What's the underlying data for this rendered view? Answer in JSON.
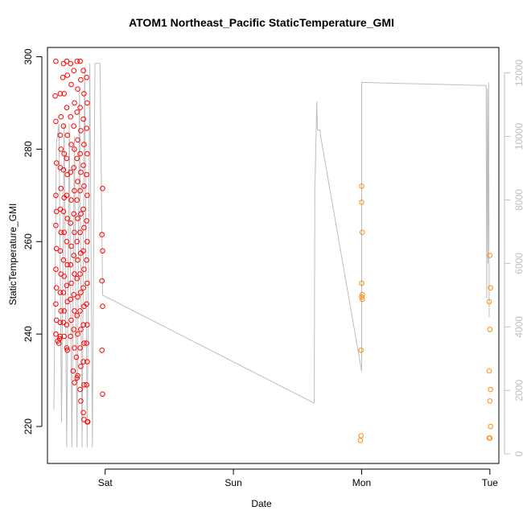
{
  "chart_data": {
    "type": "scatter",
    "title": "ATOM1 Northeast_Pacific StaticTemperature_GMI",
    "xlabel": "Date",
    "ylabel": "StaticTemperature_GMI",
    "x_ticks": [
      {
        "label": "Sat",
        "day": 0
      },
      {
        "label": "Sun",
        "day": 1
      },
      {
        "label": "Mon",
        "day": 2
      },
      {
        "label": "Tue",
        "day": 3
      }
    ],
    "xlim": [
      -0.45,
      3.07
    ],
    "ylim": [
      212,
      302
    ],
    "y_ticks": [
      220,
      240,
      260,
      280,
      300
    ],
    "y2lim": [
      -300,
      12800
    ],
    "y2_ticks": [
      0,
      2000,
      4000,
      6000,
      8000,
      10000,
      12000
    ],
    "grid": false,
    "colors": {
      "series1": "#ff0000",
      "series2": "#ff8c00",
      "altitude": "#bebebe",
      "y2_axis": "#bebebe"
    },
    "series": [
      {
        "color": "#ff0000",
        "points": [
          [
            -0.385,
            299
          ],
          [
            -0.39,
            291.5
          ],
          [
            -0.385,
            286
          ],
          [
            -0.38,
            277
          ],
          [
            -0.385,
            270
          ],
          [
            -0.38,
            266.5
          ],
          [
            -0.385,
            263.5
          ],
          [
            -0.38,
            258.5
          ],
          [
            -0.385,
            254
          ],
          [
            -0.38,
            250
          ],
          [
            -0.385,
            246.5
          ],
          [
            -0.38,
            243
          ],
          [
            -0.385,
            240
          ],
          [
            -0.37,
            238.5
          ],
          [
            -0.35,
            292
          ],
          [
            -0.345,
            287
          ],
          [
            -0.35,
            283
          ],
          [
            -0.345,
            280
          ],
          [
            -0.35,
            276
          ],
          [
            -0.345,
            271.5
          ],
          [
            -0.35,
            267
          ],
          [
            -0.345,
            262
          ],
          [
            -0.35,
            258
          ],
          [
            -0.345,
            253
          ],
          [
            -0.35,
            249
          ],
          [
            -0.345,
            245
          ],
          [
            -0.35,
            242.5
          ],
          [
            -0.35,
            239.5
          ],
          [
            -0.355,
            239
          ],
          [
            -0.36,
            238
          ],
          [
            -0.33,
            295.5
          ],
          [
            -0.325,
            298.5
          ],
          [
            -0.32,
            292
          ],
          [
            -0.325,
            285
          ],
          [
            -0.32,
            279
          ],
          [
            -0.325,
            275.5
          ],
          [
            -0.32,
            269.5
          ],
          [
            -0.325,
            266.5
          ],
          [
            -0.32,
            262
          ],
          [
            -0.325,
            256
          ],
          [
            -0.32,
            252.5
          ],
          [
            -0.325,
            249
          ],
          [
            -0.32,
            245
          ],
          [
            -0.325,
            242.5
          ],
          [
            -0.32,
            239.5
          ],
          [
            -0.3,
            299
          ],
          [
            -0.295,
            296
          ],
          [
            -0.3,
            289
          ],
          [
            -0.295,
            283
          ],
          [
            -0.3,
            278
          ],
          [
            -0.295,
            274.5
          ],
          [
            -0.3,
            270
          ],
          [
            -0.295,
            265
          ],
          [
            -0.3,
            260
          ],
          [
            -0.295,
            255
          ],
          [
            -0.3,
            250.5
          ],
          [
            -0.295,
            247
          ],
          [
            -0.3,
            242
          ],
          [
            -0.3,
            237
          ],
          [
            -0.295,
            236.5
          ],
          [
            -0.27,
            298.5
          ],
          [
            -0.265,
            294
          ],
          [
            -0.27,
            287
          ],
          [
            -0.265,
            281
          ],
          [
            -0.27,
            275
          ],
          [
            -0.265,
            269
          ],
          [
            -0.27,
            264
          ],
          [
            -0.265,
            259
          ],
          [
            -0.27,
            255
          ],
          [
            -0.265,
            251
          ],
          [
            -0.27,
            247.5
          ],
          [
            -0.265,
            243
          ],
          [
            -0.27,
            239.5
          ],
          [
            -0.245,
            297
          ],
          [
            -0.24,
            290
          ],
          [
            -0.245,
            285
          ],
          [
            -0.24,
            280
          ],
          [
            -0.245,
            276
          ],
          [
            -0.24,
            271
          ],
          [
            -0.245,
            266
          ],
          [
            -0.24,
            262
          ],
          [
            -0.245,
            257
          ],
          [
            -0.24,
            253
          ],
          [
            -0.245,
            248.5
          ],
          [
            -0.24,
            245
          ],
          [
            -0.245,
            241
          ],
          [
            -0.24,
            237
          ],
          [
            -0.25,
            232
          ],
          [
            -0.24,
            229.5
          ],
          [
            -0.22,
            299
          ],
          [
            -0.215,
            293
          ],
          [
            -0.22,
            288
          ],
          [
            -0.215,
            282
          ],
          [
            -0.22,
            278
          ],
          [
            -0.215,
            273
          ],
          [
            -0.22,
            269
          ],
          [
            -0.215,
            265
          ],
          [
            -0.22,
            260
          ],
          [
            -0.215,
            256
          ],
          [
            -0.22,
            252
          ],
          [
            -0.215,
            248
          ],
          [
            -0.22,
            244
          ],
          [
            -0.215,
            240
          ],
          [
            -0.225,
            235
          ],
          [
            -0.215,
            231
          ],
          [
            -0.22,
            230.5
          ],
          [
            -0.195,
            299
          ],
          [
            -0.19,
            295
          ],
          [
            -0.195,
            289
          ],
          [
            -0.19,
            284
          ],
          [
            -0.195,
            279
          ],
          [
            -0.19,
            275
          ],
          [
            -0.195,
            271
          ],
          [
            -0.19,
            266
          ],
          [
            -0.195,
            262
          ],
          [
            -0.19,
            257.5
          ],
          [
            -0.195,
            253
          ],
          [
            -0.19,
            249
          ],
          [
            -0.195,
            245
          ],
          [
            -0.19,
            241
          ],
          [
            -0.195,
            237
          ],
          [
            -0.19,
            233
          ],
          [
            -0.195,
            228
          ],
          [
            -0.19,
            225.5
          ],
          [
            -0.17,
            297
          ],
          [
            -0.165,
            292
          ],
          [
            -0.17,
            286.5
          ],
          [
            -0.165,
            281
          ],
          [
            -0.17,
            276.5
          ],
          [
            -0.165,
            272
          ],
          [
            -0.17,
            267
          ],
          [
            -0.165,
            263
          ],
          [
            -0.17,
            258
          ],
          [
            -0.165,
            254
          ],
          [
            -0.17,
            250
          ],
          [
            -0.165,
            246
          ],
          [
            -0.17,
            242
          ],
          [
            -0.165,
            238
          ],
          [
            -0.17,
            234
          ],
          [
            -0.165,
            229
          ],
          [
            -0.17,
            223
          ],
          [
            -0.165,
            221.5
          ],
          [
            -0.145,
            295.5
          ],
          [
            -0.14,
            290
          ],
          [
            -0.145,
            284.5
          ],
          [
            -0.14,
            279
          ],
          [
            -0.145,
            274.5
          ],
          [
            -0.14,
            270
          ],
          [
            -0.145,
            264.5
          ],
          [
            -0.14,
            260
          ],
          [
            -0.145,
            256
          ],
          [
            -0.14,
            251
          ],
          [
            -0.145,
            246.5
          ],
          [
            -0.14,
            242
          ],
          [
            -0.145,
            238
          ],
          [
            -0.14,
            234
          ],
          [
            -0.145,
            229
          ],
          [
            -0.14,
            221
          ],
          [
            -0.135,
            221
          ],
          [
            -0.02,
            271.5
          ],
          [
            -0.025,
            261.5
          ],
          [
            -0.02,
            258
          ],
          [
            -0.025,
            251.5
          ],
          [
            -0.02,
            246
          ],
          [
            -0.025,
            236.5
          ],
          [
            -0.02,
            227
          ]
        ]
      },
      {
        "color": "#ff8c00",
        "points": [
          [
            2.0,
            272
          ],
          [
            2.0,
            268.5
          ],
          [
            2.005,
            262
          ],
          [
            2.0,
            251
          ],
          [
            2.005,
            248.5
          ],
          [
            2.0,
            248
          ],
          [
            2.005,
            247.5
          ],
          [
            1.995,
            236.5
          ],
          [
            1.995,
            218
          ],
          [
            1.99,
            217
          ],
          [
            3.0,
            257
          ],
          [
            3.005,
            250
          ],
          [
            2.995,
            247
          ],
          [
            3.0,
            241
          ],
          [
            2.995,
            232
          ],
          [
            3.005,
            228
          ],
          [
            3.0,
            225.5
          ],
          [
            3.005,
            220
          ],
          [
            2.995,
            217.5
          ],
          [
            3.0,
            217.5
          ]
        ]
      }
    ],
    "line_series": {
      "axis": "y2",
      "points": [
        [
          -0.4,
          1400
        ],
        [
          -0.38,
          9800
        ],
        [
          -0.36,
          10400
        ],
        [
          -0.34,
          1000
        ],
        [
          -0.32,
          10400
        ],
        [
          -0.3,
          200
        ],
        [
          -0.28,
          10400
        ],
        [
          -0.26,
          200
        ],
        [
          -0.24,
          10000
        ],
        [
          -0.22,
          200
        ],
        [
          -0.2,
          11500
        ],
        [
          -0.18,
          200
        ],
        [
          -0.16,
          12200
        ],
        [
          -0.14,
          200
        ],
        [
          -0.12,
          12300
        ],
        [
          -0.1,
          200
        ],
        [
          -0.08,
          12300
        ],
        [
          -0.06,
          12300
        ],
        [
          -0.04,
          12300
        ],
        [
          -0.02,
          5000
        ],
        [
          1.63,
          1600
        ],
        [
          1.635,
          8400
        ],
        [
          1.64,
          9100
        ],
        [
          1.65,
          11100
        ],
        [
          1.655,
          10200
        ],
        [
          1.665,
          10200
        ],
        [
          1.675,
          10200
        ],
        [
          1.68,
          10000
        ],
        [
          2.0,
          2600
        ],
        [
          2.0,
          11700
        ],
        [
          2.97,
          11600
        ],
        [
          2.975,
          4900
        ],
        [
          2.98,
          11500
        ],
        [
          2.985,
          6000
        ],
        [
          2.99,
          11700
        ],
        [
          2.995,
          4300
        ]
      ]
    }
  }
}
